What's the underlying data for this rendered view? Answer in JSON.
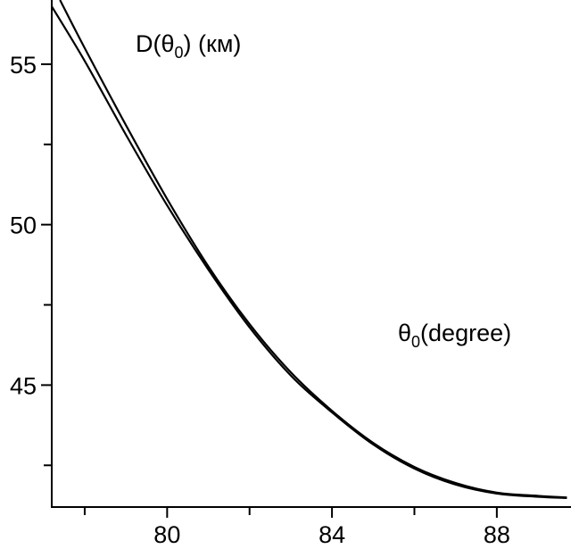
{
  "chart_data": {
    "type": "line",
    "ylabel_parts": {
      "main": "D(θ",
      "sub": "0",
      "tail": ") (км)"
    },
    "xlabel_parts": {
      "main": "θ",
      "sub": "0",
      "tail": "(degree)"
    },
    "xlim": [
      77.2,
      89.8
    ],
    "ylim": [
      41.2,
      57.0
    ],
    "x_major_ticks": [
      80,
      84,
      88
    ],
    "x_minor_ticks": [
      78,
      82,
      86
    ],
    "y_major_ticks": [
      45,
      50,
      55
    ],
    "y_minor_ticks": [
      42.5,
      47.5,
      52.5
    ],
    "x_tick_labels": [
      "80",
      "84",
      "88"
    ],
    "y_tick_labels": [
      "45",
      "50",
      "55"
    ],
    "grid": false,
    "line_color": "#000000",
    "series": [
      {
        "x": [
          77.4,
          78,
          79,
          80,
          81,
          82,
          83,
          84,
          85,
          86,
          87,
          88,
          89,
          89.7
        ],
        "values": [
          57.0,
          55.5,
          53.1,
          50.8,
          48.7,
          46.9,
          45.4,
          44.2,
          43.2,
          42.45,
          41.95,
          41.65,
          41.55,
          41.5
        ]
      },
      {
        "x": [
          77.2,
          78,
          79,
          80,
          81,
          82,
          83,
          84,
          85,
          86,
          87,
          88,
          89,
          89.7
        ],
        "values": [
          56.8,
          55.1,
          52.8,
          50.6,
          48.6,
          46.8,
          45.3,
          44.15,
          43.15,
          42.4,
          41.9,
          41.62,
          41.52,
          41.48
        ]
      }
    ]
  }
}
